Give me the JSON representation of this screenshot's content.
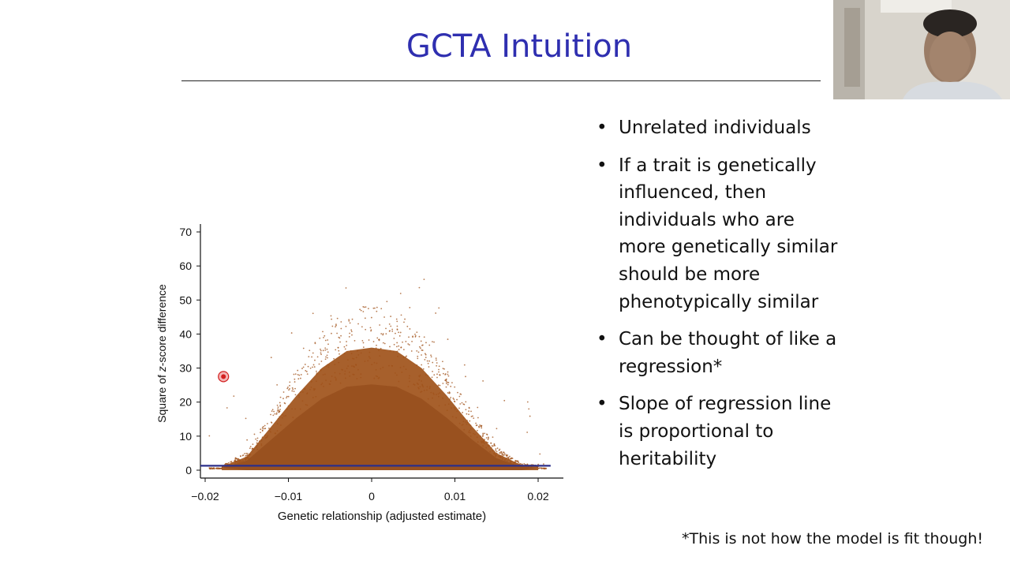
{
  "slide": {
    "title": "GCTA Intuition"
  },
  "bullets": [
    "Unrelated individuals",
    "If a trait is genetically influenced, then individuals who are more genetically similar should be more phenotypically similar",
    "Can be thought of like a regression*",
    "Slope of regression line is proportional to heritability"
  ],
  "bullet_lines": [
    [
      "Unrelated individuals"
    ],
    [
      "If a trait is genetically",
      "influenced, then",
      "individuals who are",
      "more genetically similar",
      "should be more",
      "phenotypically similar"
    ],
    [
      "Can be thought of like a",
      "regression*"
    ],
    [
      "Slope of regression line",
      "is proportional to",
      "heritability"
    ]
  ],
  "footnote": "*This is not how the model is fit though!",
  "colors": {
    "title": "#2f2fb0",
    "scatter": "#a0521a",
    "regression_line": "#2c2f8a",
    "pointer": "#d32020"
  },
  "chart_data": {
    "type": "scatter",
    "title": "",
    "xlabel": "Genetic relationship (adjusted estimate)",
    "ylabel_parts": [
      "Square of ",
      "z",
      "-score difference"
    ],
    "xlim": [
      -0.02,
      0.02
    ],
    "ylim": [
      0,
      70
    ],
    "x_ticks": [
      -0.02,
      -0.01,
      0,
      0.01,
      0.02
    ],
    "x_tick_labels": [
      "−0.02",
      "−0.01",
      "0",
      "0.01",
      "0.02"
    ],
    "y_ticks": [
      0,
      10,
      20,
      30,
      40,
      50,
      60,
      70
    ],
    "y_tick_labels": [
      "0",
      "10",
      "20",
      "30",
      "40",
      "50",
      "60",
      "70"
    ],
    "grid": false,
    "density_envelope": {
      "x": [
        -0.018,
        -0.015,
        -0.012,
        -0.009,
        -0.006,
        -0.003,
        0,
        0.003,
        0.006,
        0.009,
        0.012,
        0.015,
        0.018,
        0.02
      ],
      "y_max": [
        1,
        4,
        13,
        22,
        30,
        35,
        36,
        35,
        30,
        22,
        13,
        5,
        1.5,
        1
      ]
    },
    "regression_line": {
      "x": [
        -0.02,
        0.0215
      ],
      "y": [
        1.3,
        1.3
      ]
    },
    "pointer": {
      "x": -0.0178,
      "y": 27.5
    }
  }
}
